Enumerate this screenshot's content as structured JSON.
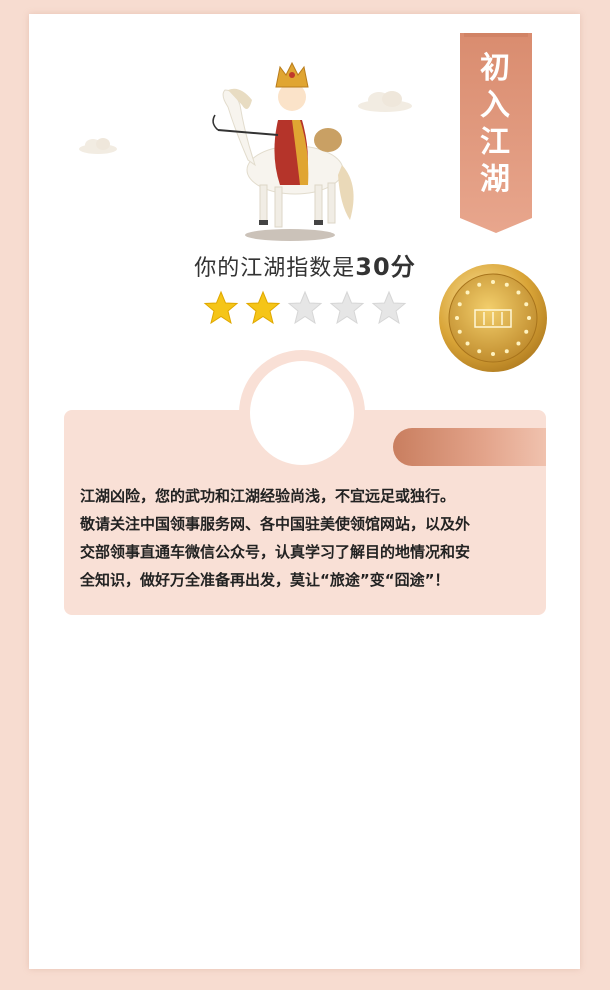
{
  "banner": {
    "title": "初入江湖"
  },
  "result": {
    "prefix": "你的江湖指数是",
    "score": "30分",
    "rating": 2,
    "rating_max": 5
  },
  "medal": {
    "icon": "medal-icon"
  },
  "illustration": {
    "icon": "monk-on-horse-icon"
  },
  "message": {
    "lines": [
      "江湖凶险，您的武功和江湖经验尚浅，不宜远足或独行。",
      "敬请关注中国领事服务网、各中国驻美使领馆网站，以及外",
      "交部领事直通车微信公众号，认真学习了解目的地情况和安",
      "全知识，做好万全准备再出发，莫让“旅途”变“囧途”！"
    ]
  },
  "colors": {
    "background": "#f7dcd0",
    "panel": "#f9e0d6",
    "banner": "#d9876a",
    "star_on": "#f5c518",
    "star_off": "#e6e6e6",
    "gold": "#d4a23a"
  }
}
